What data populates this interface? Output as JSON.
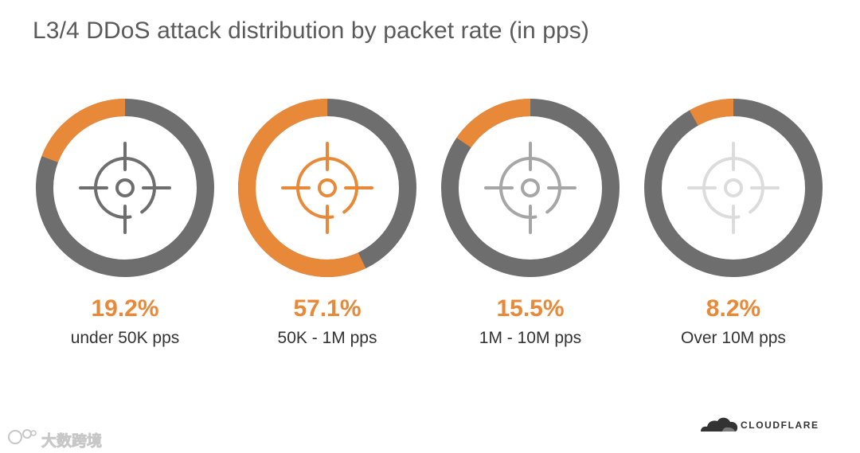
{
  "title": "L3/4 DDoS attack distribution by packet rate (in pps)",
  "colors": {
    "accent": "#e8893a",
    "ring_base": "#6e6e6e",
    "title": "#5a5a5a",
    "text": "#333333"
  },
  "chart_data": {
    "type": "pie",
    "title": "L3/4 DDoS attack distribution by packet rate (in pps)",
    "categories": [
      "under 50K pps",
      "50K - 1M pps",
      "1M - 10M pps",
      "Over 10M pps"
    ],
    "values": [
      19.2,
      57.1,
      15.5,
      8.2
    ],
    "value_labels": [
      "19.2%",
      "57.1%",
      "15.5%",
      "8.2%"
    ],
    "unit": "%",
    "style": "four separate donut rings, each ring filled clockwise from the top by its share",
    "icon_colors": [
      "#6e6e6e",
      "#e8893a",
      "#a6a6a6",
      "#dcdcdc"
    ]
  },
  "icons": {
    "target": "crosshair-target-icon",
    "brand_logo": "cloud-icon"
  },
  "brand": {
    "name": "CLOUDFLARE"
  },
  "watermark": {
    "text": "大数跨境"
  }
}
